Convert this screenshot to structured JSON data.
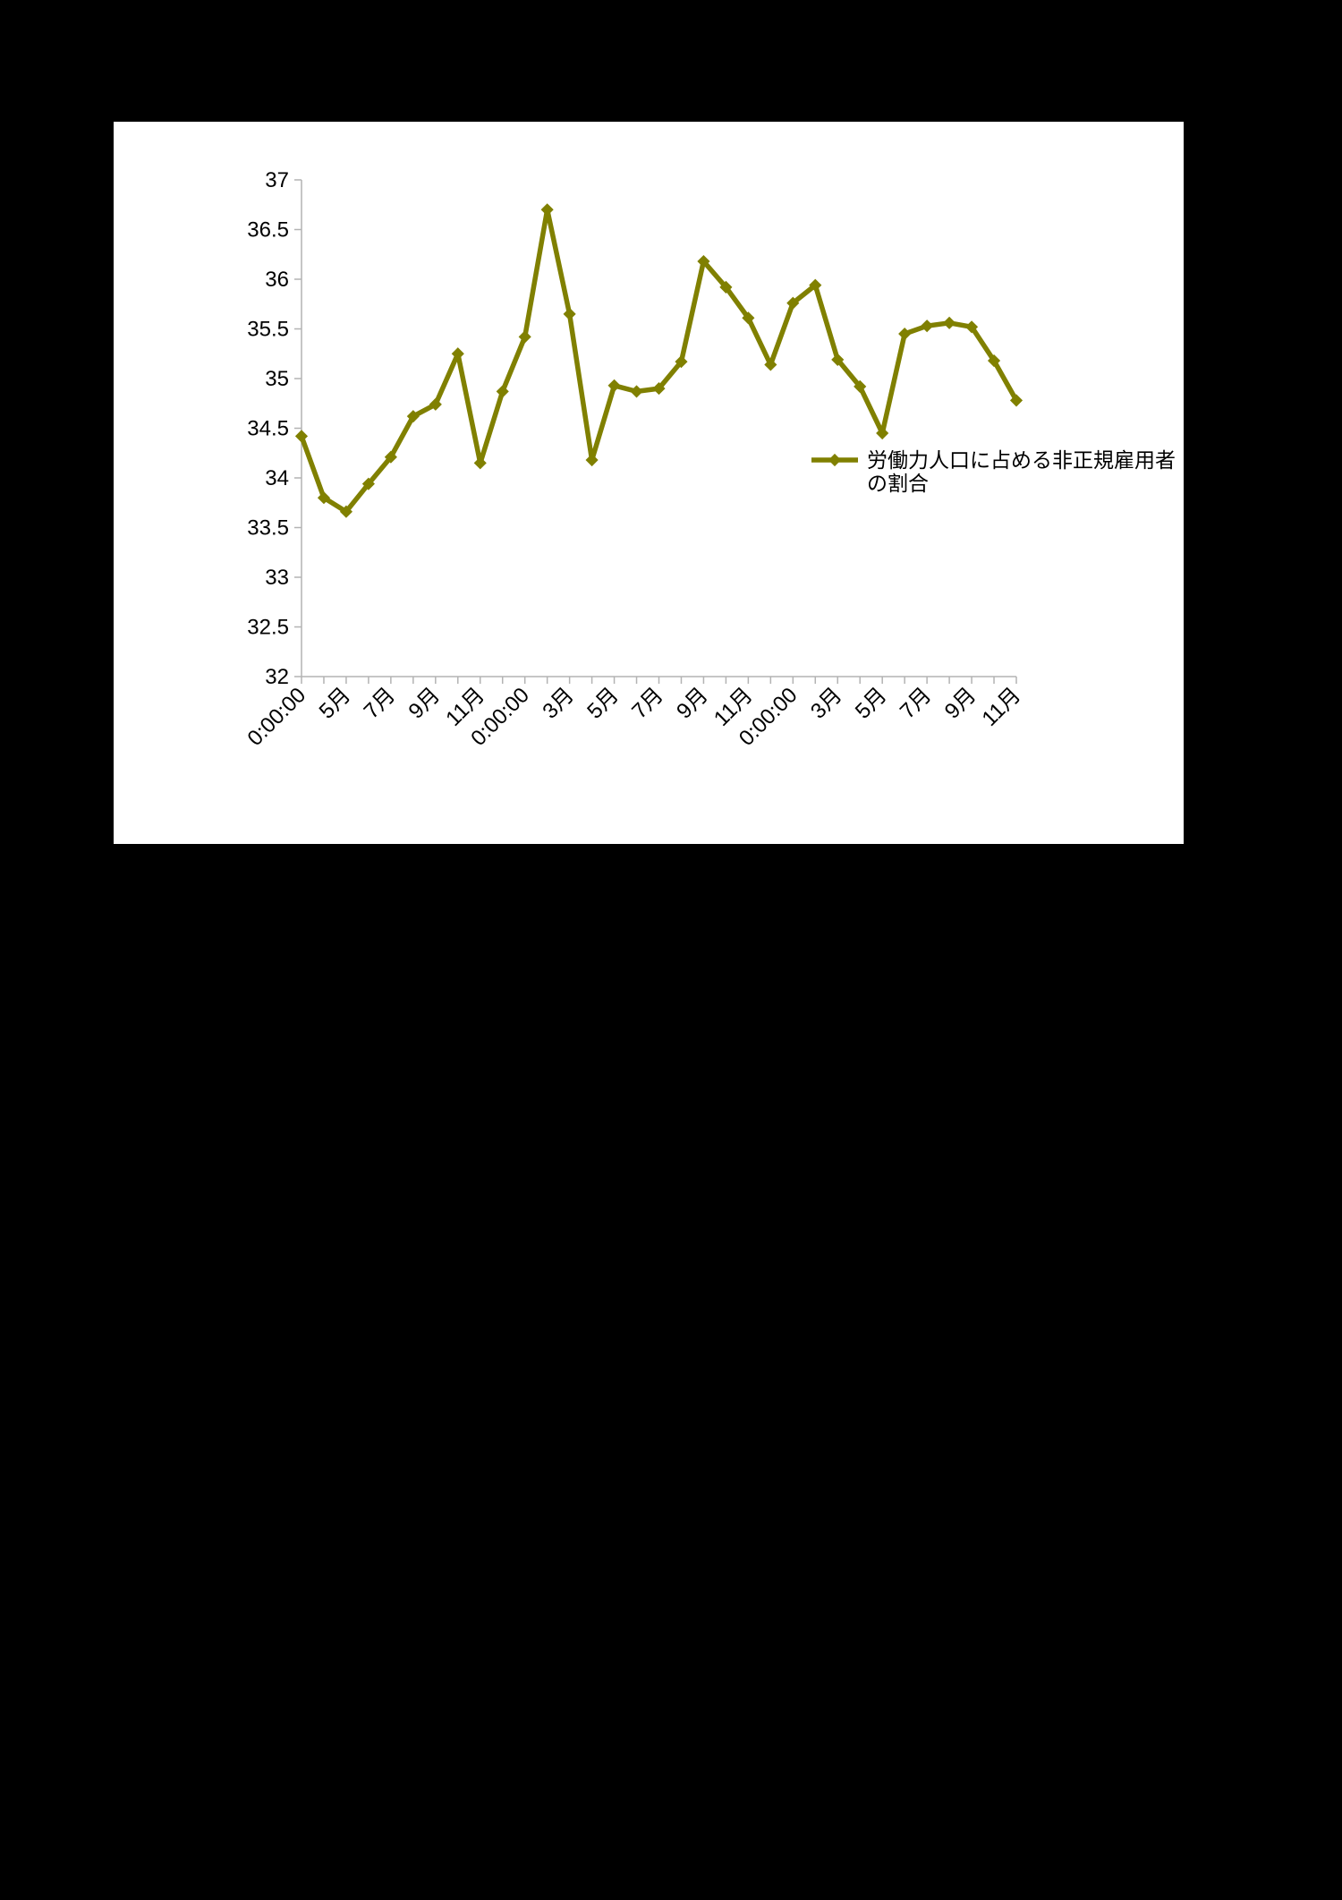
{
  "chart_data": {
    "type": "line",
    "x": [
      "0:00:00",
      "",
      "5月",
      "",
      "7月",
      "",
      "9月",
      "",
      "11月",
      "",
      "0:00:00",
      "",
      "3月",
      "",
      "5月",
      "",
      "7月",
      "",
      "9月",
      "",
      "11月",
      "",
      "0:00:00",
      "",
      "3月",
      "",
      "5月",
      "",
      "7月",
      "",
      "9月",
      "",
      "11月"
    ],
    "series": [
      {
        "name": "労働力人口に占める非正規雇用者の割合",
        "color": "#808000",
        "values": [
          34.42,
          33.8,
          33.66,
          33.94,
          34.21,
          34.62,
          34.74,
          35.25,
          34.15,
          34.87,
          35.42,
          36.7,
          35.65,
          34.18,
          34.93,
          34.87,
          34.9,
          35.17,
          36.18,
          35.92,
          35.61,
          35.14,
          35.76,
          35.94,
          35.19,
          34.92,
          34.45,
          35.45,
          35.53,
          35.56,
          35.52,
          35.18,
          34.78
        ]
      }
    ],
    "yticks": [
      "32",
      "32.5",
      "33",
      "33.5",
      "34",
      "34.5",
      "35",
      "35.5",
      "36",
      "36.5",
      "37"
    ],
    "ylim": [
      32,
      37
    ],
    "grid": false,
    "legend": "right",
    "marker": "diamond"
  }
}
